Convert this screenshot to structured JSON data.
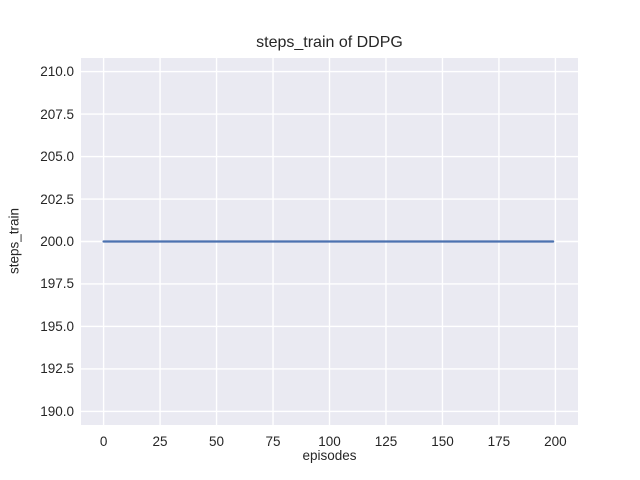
{
  "chart_data": {
    "type": "line",
    "title": "steps_train of DDPG",
    "xlabel": "episodes",
    "ylabel": "steps_train",
    "xlim": [
      -10,
      210
    ],
    "ylim": [
      189.2,
      210.8
    ],
    "xticks": [
      {
        "value": 0,
        "label": "0"
      },
      {
        "value": 25,
        "label": "25"
      },
      {
        "value": 50,
        "label": "50"
      },
      {
        "value": 75,
        "label": "75"
      },
      {
        "value": 100,
        "label": "100"
      },
      {
        "value": 125,
        "label": "125"
      },
      {
        "value": 150,
        "label": "150"
      },
      {
        "value": 175,
        "label": "175"
      },
      {
        "value": 200,
        "label": "200"
      }
    ],
    "yticks": [
      {
        "value": 210.0,
        "label": "210.0"
      },
      {
        "value": 207.5,
        "label": "207.5"
      },
      {
        "value": 205.0,
        "label": "205.0"
      },
      {
        "value": 202.5,
        "label": "202.5"
      },
      {
        "value": 200.0,
        "label": "200.0"
      },
      {
        "value": 197.5,
        "label": "197.5"
      },
      {
        "value": 195.0,
        "label": "195.0"
      },
      {
        "value": 192.5,
        "label": "192.5"
      },
      {
        "value": 190.0,
        "label": "190.0"
      }
    ],
    "grid": true,
    "legend": "none",
    "series": [
      {
        "name": "steps_train",
        "color": "#4C72B0",
        "x": [
          0,
          199
        ],
        "y": [
          200,
          200
        ],
        "note": "constant value 200 for all episodes 0-199"
      }
    ],
    "colors": {
      "figure_background": "#ffffff",
      "plot_background": "#EAEAF2",
      "grid": "#FFFFFF",
      "text": "#262626"
    }
  }
}
